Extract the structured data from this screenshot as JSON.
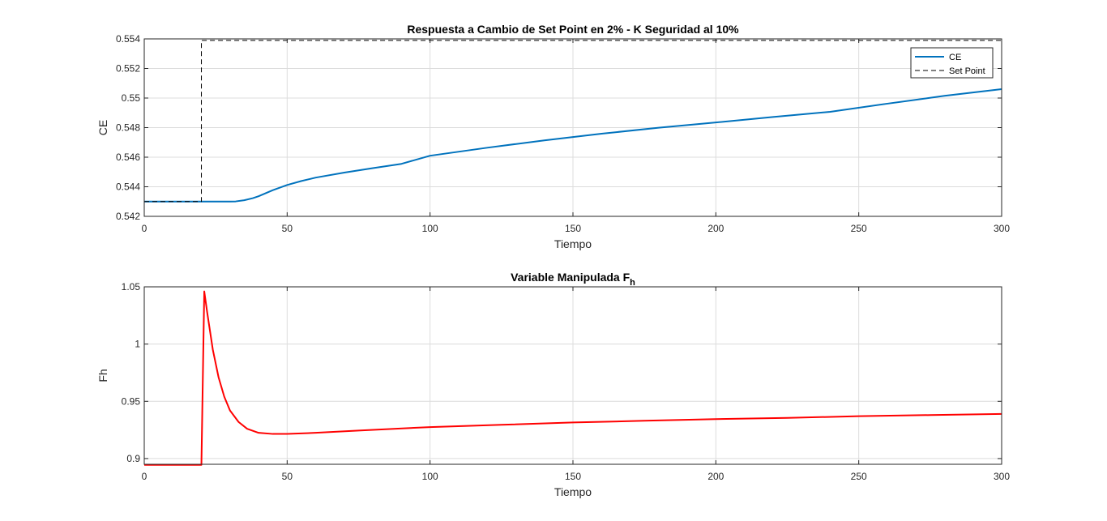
{
  "chart_data": [
    {
      "type": "line",
      "title": "Respuesta a Cambio de Set Point en 2% - K Seguridad al 10%",
      "xlabel": "Tiempo",
      "ylabel": "CE",
      "xlim": [
        0,
        300
      ],
      "ylim": [
        0.542,
        0.554
      ],
      "xticks": [
        0,
        50,
        100,
        150,
        200,
        250,
        300
      ],
      "xtick_labels": [
        "0",
        "50",
        "100",
        "150",
        "200",
        "250",
        "300"
      ],
      "yticks": [
        0.542,
        0.544,
        0.546,
        0.548,
        0.55,
        0.552,
        0.554
      ],
      "ytick_labels": [
        "0.542",
        "0.544",
        "0.546",
        "0.548",
        "0.55",
        "0.552",
        "0.554"
      ],
      "grid": true,
      "legend_position": "top-right",
      "series": [
        {
          "name": "CE",
          "color": "#0072BD",
          "style": "solid",
          "x": [
            0,
            20,
            30,
            32,
            35,
            38,
            40,
            45,
            50,
            55,
            60,
            70,
            80,
            90,
            100,
            120,
            140,
            160,
            180,
            200,
            220,
            240,
            260,
            280,
            300
          ],
          "y": [
            0.543,
            0.543,
            0.543,
            0.54301,
            0.54309,
            0.54323,
            0.54336,
            0.54377,
            0.54412,
            0.54439,
            0.54462,
            0.54496,
            0.54526,
            0.54555,
            0.5461,
            0.54664,
            0.54714,
            0.54759,
            0.54799,
            0.54835,
            0.54872,
            0.54907,
            0.54962,
            0.55015,
            0.5506
          ]
        },
        {
          "name": "Set Point",
          "color": "#000000",
          "style": "dashed",
          "x": [
            0,
            20,
            20,
            300
          ],
          "y": [
            0.543,
            0.543,
            0.5539,
            0.5539
          ]
        }
      ]
    },
    {
      "type": "line",
      "title": "Variable Manipulada F",
      "title_subscript": "h",
      "xlabel": "Tiempo",
      "ylabel": "Fh",
      "xlim": [
        0,
        300
      ],
      "ylim": [
        0.895,
        1.05
      ],
      "xticks": [
        0,
        50,
        100,
        150,
        200,
        250,
        300
      ],
      "xtick_labels": [
        "0",
        "50",
        "100",
        "150",
        "200",
        "250",
        "300"
      ],
      "yticks": [
        0.9,
        0.95,
        1,
        1.05
      ],
      "ytick_labels": [
        "0.9",
        "0.95",
        "1",
        "1.05"
      ],
      "grid": true,
      "series": [
        {
          "color": "#FF0000",
          "style": "solid",
          "x": [
            0,
            20,
            21,
            22,
            24,
            26,
            28,
            30,
            33,
            36,
            40,
            45,
            50,
            60,
            75,
            100,
            125,
            150,
            175,
            200,
            225,
            250,
            275,
            300
          ],
          "y": [
            0.8945,
            0.8945,
            1.046,
            1.028,
            0.995,
            0.971,
            0.954,
            0.942,
            0.932,
            0.926,
            0.9225,
            0.9215,
            0.9215,
            0.9225,
            0.9245,
            0.9275,
            0.9295,
            0.9315,
            0.933,
            0.9345,
            0.9355,
            0.937,
            0.938,
            0.939
          ]
        }
      ]
    }
  ]
}
